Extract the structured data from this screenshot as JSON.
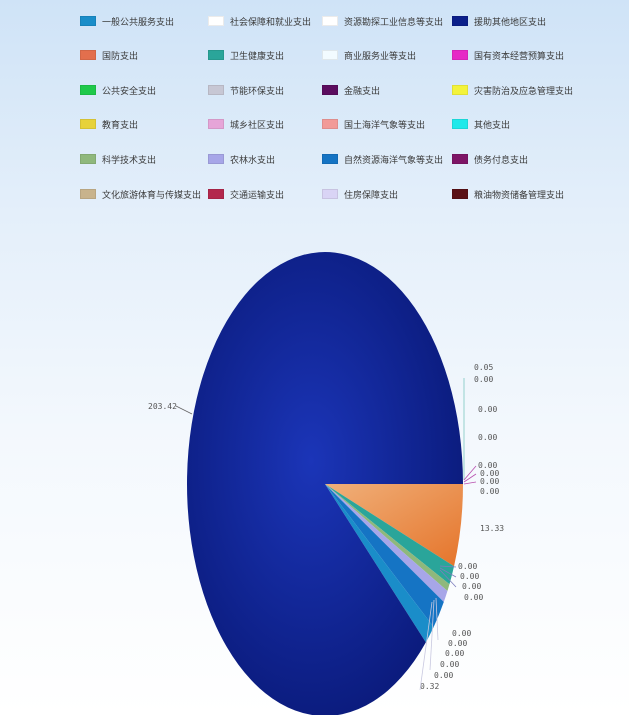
{
  "chart_data": {
    "type": "pie",
    "title": "",
    "series": [
      {
        "name": "一般公共服务支出",
        "color": "#1a8dc9"
      },
      {
        "name": "社会保障和就业支出",
        "color": "#ffffff"
      },
      {
        "name": "资源勘探工业信息等支出",
        "color": "#ffffff"
      },
      {
        "name": "援助其他地区支出",
        "color": "#0b1f8a"
      },
      {
        "name": "国防支出",
        "color": "#e36f4d"
      },
      {
        "name": "卫生健康支出",
        "color": "#2aa59a"
      },
      {
        "name": "商业服务业等支出",
        "color": "#f2fbff"
      },
      {
        "name": "国有资本经营预算支出",
        "color": "#e629c6"
      },
      {
        "name": "公共安全支出",
        "color": "#1fc94a"
      },
      {
        "name": "节能环保支出",
        "color": "#c7c7d4"
      },
      {
        "name": "金融支出",
        "color": "#5b0c5f"
      },
      {
        "name": "灾害防治及应急管理支出",
        "color": "#f3f33a"
      },
      {
        "name": "教育支出",
        "color": "#e7d23a"
      },
      {
        "name": "城乡社区支出",
        "color": "#e6a5d8"
      },
      {
        "name": "国土海洋气象等支出",
        "color": "#f19a98"
      },
      {
        "name": "其他支出",
        "color": "#1ee9ea"
      },
      {
        "name": "科学技术支出",
        "color": "#8fb87c"
      },
      {
        "name": "农林水支出",
        "color": "#a7a6e8"
      },
      {
        "name": "自然资源海洋气象等支出",
        "color": "#1574c4"
      },
      {
        "name": "债务付息支出",
        "color": "#7e1566"
      },
      {
        "name": "文化旅游体育与传媒支出",
        "color": "#c8b38c"
      },
      {
        "name": "交通运输支出",
        "color": "#b3284d"
      },
      {
        "name": "住房保障支出",
        "color": "#d9d4f5"
      },
      {
        "name": "粮油物资储备管理支出",
        "color": "#5a1015"
      }
    ],
    "slices": [
      {
        "series": "援助其他地区支出",
        "value": 203.42,
        "label": "203.42",
        "color": "#0b1f8a"
      },
      {
        "series": "国防支出",
        "value": 13.33,
        "label": "13.33",
        "color": "#e36f4d"
      },
      {
        "series": "卫生健康支出",
        "value": 3.1,
        "label": "",
        "color": "#2aa59a"
      },
      {
        "series": "科学技术支出",
        "value": 1.2,
        "label": "",
        "color": "#8fb87c"
      },
      {
        "series": "农林水支出",
        "value": 2.0,
        "label": "",
        "color": "#a7a6e8"
      },
      {
        "series": "自然资源海洋气象等支出",
        "value": 4.8,
        "label": "",
        "color": "#1574c4"
      },
      {
        "series": "一般公共服务支出",
        "value": 3.2,
        "label": "",
        "color": "#1a8dc9"
      }
    ],
    "callouts": {
      "right_upper": [
        "0.05",
        "0.00",
        "0.00",
        "0.00",
        "0.00",
        "0.00",
        "0.00",
        "0.00"
      ],
      "right_middle": [
        "13.33"
      ],
      "right_lower": [
        "0.00",
        "0.00",
        "0.00",
        "0.00"
      ],
      "bottom": [
        "0.00",
        "0.00",
        "0.00",
        "0.00",
        "0.00",
        "0.32"
      ],
      "left": [
        "203.42"
      ]
    },
    "legend_position": "top"
  }
}
